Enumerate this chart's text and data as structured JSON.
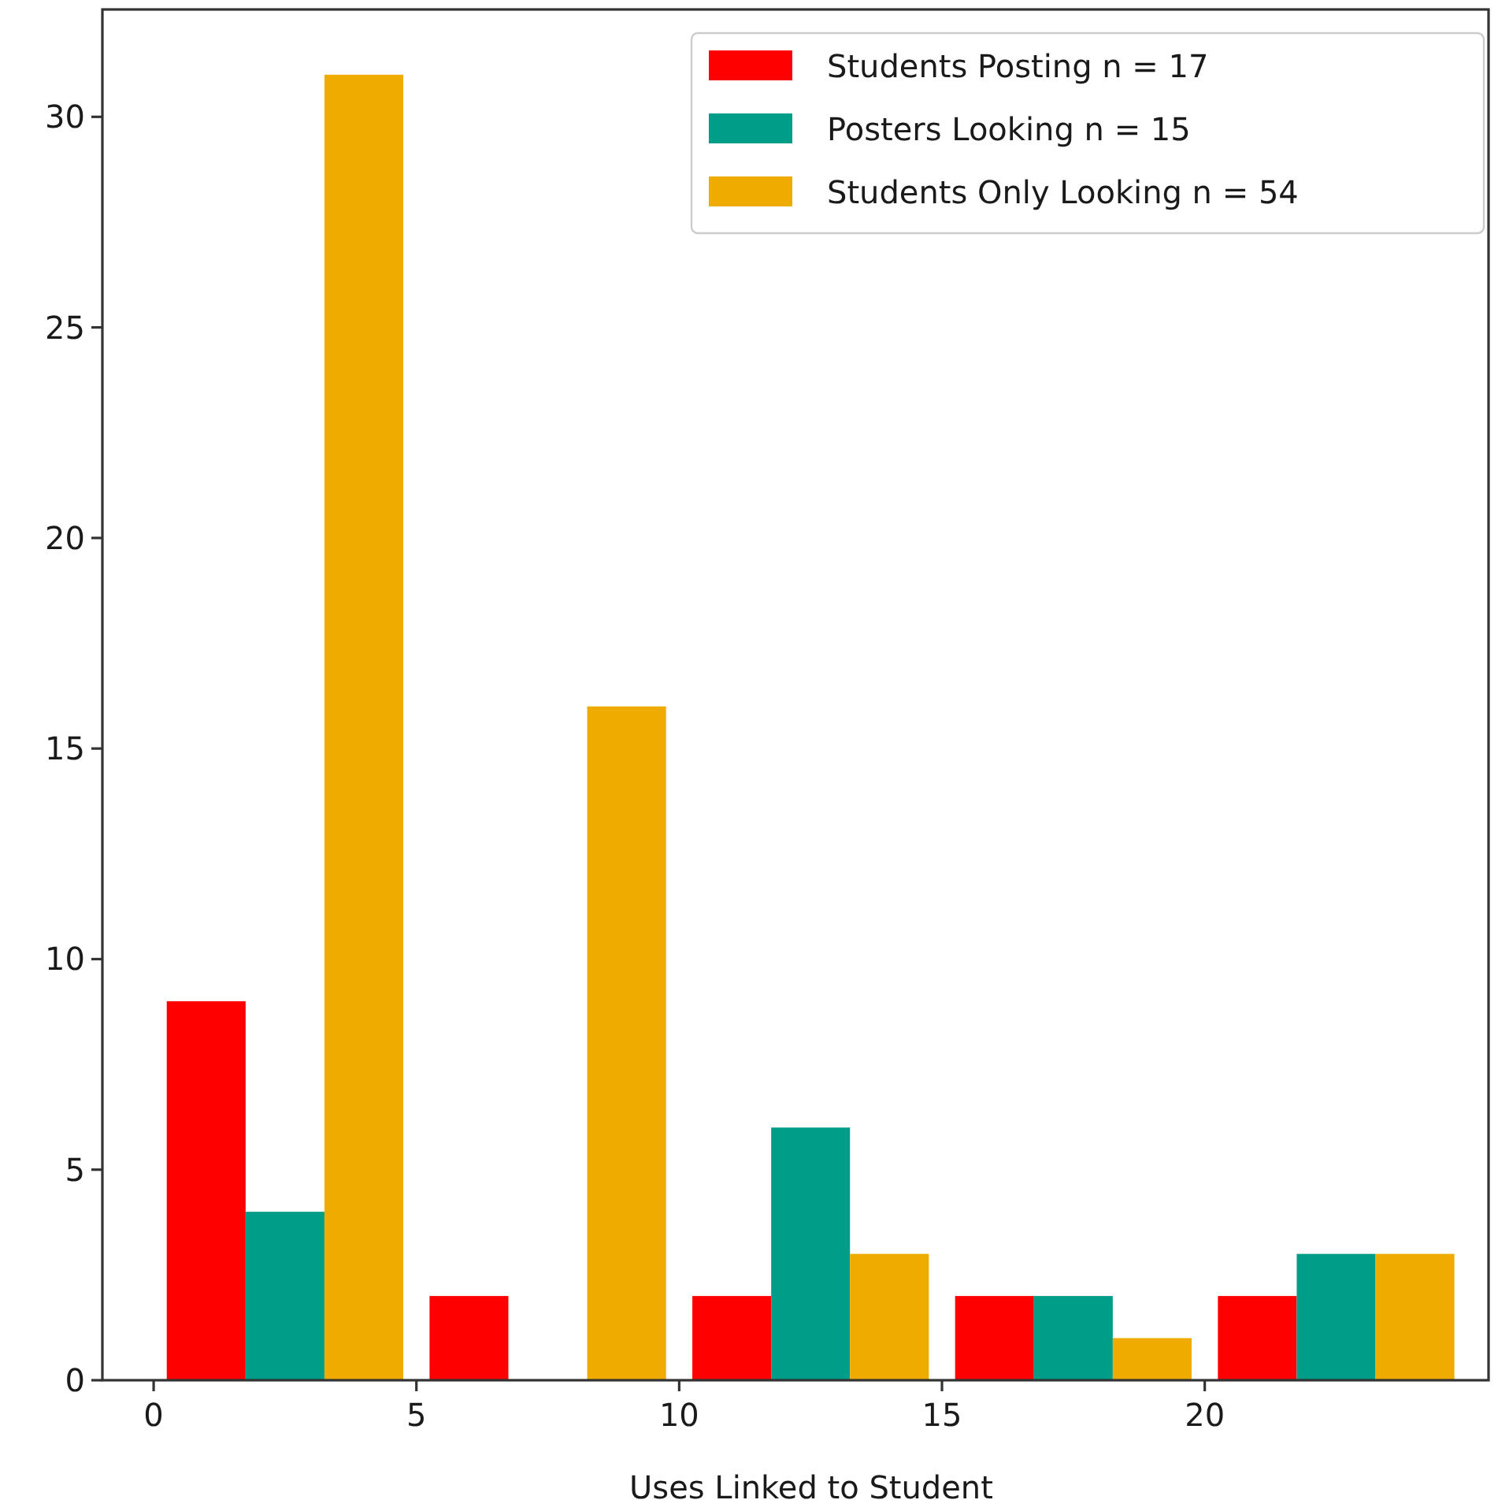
{
  "chart_data": {
    "type": "histogram",
    "xlabel": "Uses Linked to Student",
    "bins": [
      0,
      5,
      10,
      15,
      20,
      25
    ],
    "series": [
      {
        "name": "Students Posting n = 17",
        "color": "#ff0000",
        "values": [
          9,
          2,
          2,
          2,
          2
        ]
      },
      {
        "name": "Posters Looking n = 15",
        "color": "#009e89",
        "values": [
          4,
          0,
          6,
          2,
          3
        ]
      },
      {
        "name": "Students Only Looking n = 54",
        "color": "#f0ab00",
        "values": [
          31,
          16,
          3,
          1,
          3
        ]
      }
    ],
    "xlim": [
      -0.975,
      25.4
    ],
    "xticks": [
      0,
      5,
      10,
      15,
      20
    ],
    "ylim": [
      0,
      32.55
    ],
    "yticks": [
      0,
      5,
      10,
      15,
      20,
      25,
      30
    ],
    "legend": "top right"
  }
}
